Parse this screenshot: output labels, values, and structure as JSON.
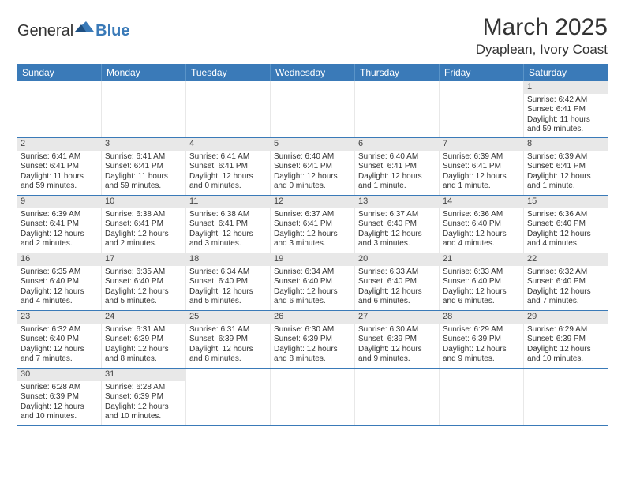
{
  "logo": {
    "text1": "General",
    "text2": "Blue"
  },
  "title": "March 2025",
  "location": "Dyaplean, Ivory Coast",
  "colors": {
    "header_bg": "#3a7ab8",
    "header_text": "#ffffff",
    "daynum_bg": "#e8e8e8",
    "text": "#333333",
    "row_border": "#3a7ab8"
  },
  "weekdays": [
    "Sunday",
    "Monday",
    "Tuesday",
    "Wednesday",
    "Thursday",
    "Friday",
    "Saturday"
  ],
  "weeks": [
    [
      null,
      null,
      null,
      null,
      null,
      null,
      {
        "n": "1",
        "sr": "6:42 AM",
        "ss": "6:41 PM",
        "dl": "11 hours and 59 minutes."
      }
    ],
    [
      {
        "n": "2",
        "sr": "6:41 AM",
        "ss": "6:41 PM",
        "dl": "11 hours and 59 minutes."
      },
      {
        "n": "3",
        "sr": "6:41 AM",
        "ss": "6:41 PM",
        "dl": "11 hours and 59 minutes."
      },
      {
        "n": "4",
        "sr": "6:41 AM",
        "ss": "6:41 PM",
        "dl": "12 hours and 0 minutes."
      },
      {
        "n": "5",
        "sr": "6:40 AM",
        "ss": "6:41 PM",
        "dl": "12 hours and 0 minutes."
      },
      {
        "n": "6",
        "sr": "6:40 AM",
        "ss": "6:41 PM",
        "dl": "12 hours and 1 minute."
      },
      {
        "n": "7",
        "sr": "6:39 AM",
        "ss": "6:41 PM",
        "dl": "12 hours and 1 minute."
      },
      {
        "n": "8",
        "sr": "6:39 AM",
        "ss": "6:41 PM",
        "dl": "12 hours and 1 minute."
      }
    ],
    [
      {
        "n": "9",
        "sr": "6:39 AM",
        "ss": "6:41 PM",
        "dl": "12 hours and 2 minutes."
      },
      {
        "n": "10",
        "sr": "6:38 AM",
        "ss": "6:41 PM",
        "dl": "12 hours and 2 minutes."
      },
      {
        "n": "11",
        "sr": "6:38 AM",
        "ss": "6:41 PM",
        "dl": "12 hours and 3 minutes."
      },
      {
        "n": "12",
        "sr": "6:37 AM",
        "ss": "6:41 PM",
        "dl": "12 hours and 3 minutes."
      },
      {
        "n": "13",
        "sr": "6:37 AM",
        "ss": "6:40 PM",
        "dl": "12 hours and 3 minutes."
      },
      {
        "n": "14",
        "sr": "6:36 AM",
        "ss": "6:40 PM",
        "dl": "12 hours and 4 minutes."
      },
      {
        "n": "15",
        "sr": "6:36 AM",
        "ss": "6:40 PM",
        "dl": "12 hours and 4 minutes."
      }
    ],
    [
      {
        "n": "16",
        "sr": "6:35 AM",
        "ss": "6:40 PM",
        "dl": "12 hours and 4 minutes."
      },
      {
        "n": "17",
        "sr": "6:35 AM",
        "ss": "6:40 PM",
        "dl": "12 hours and 5 minutes."
      },
      {
        "n": "18",
        "sr": "6:34 AM",
        "ss": "6:40 PM",
        "dl": "12 hours and 5 minutes."
      },
      {
        "n": "19",
        "sr": "6:34 AM",
        "ss": "6:40 PM",
        "dl": "12 hours and 6 minutes."
      },
      {
        "n": "20",
        "sr": "6:33 AM",
        "ss": "6:40 PM",
        "dl": "12 hours and 6 minutes."
      },
      {
        "n": "21",
        "sr": "6:33 AM",
        "ss": "6:40 PM",
        "dl": "12 hours and 6 minutes."
      },
      {
        "n": "22",
        "sr": "6:32 AM",
        "ss": "6:40 PM",
        "dl": "12 hours and 7 minutes."
      }
    ],
    [
      {
        "n": "23",
        "sr": "6:32 AM",
        "ss": "6:40 PM",
        "dl": "12 hours and 7 minutes."
      },
      {
        "n": "24",
        "sr": "6:31 AM",
        "ss": "6:39 PM",
        "dl": "12 hours and 8 minutes."
      },
      {
        "n": "25",
        "sr": "6:31 AM",
        "ss": "6:39 PM",
        "dl": "12 hours and 8 minutes."
      },
      {
        "n": "26",
        "sr": "6:30 AM",
        "ss": "6:39 PM",
        "dl": "12 hours and 8 minutes."
      },
      {
        "n": "27",
        "sr": "6:30 AM",
        "ss": "6:39 PM",
        "dl": "12 hours and 9 minutes."
      },
      {
        "n": "28",
        "sr": "6:29 AM",
        "ss": "6:39 PM",
        "dl": "12 hours and 9 minutes."
      },
      {
        "n": "29",
        "sr": "6:29 AM",
        "ss": "6:39 PM",
        "dl": "12 hours and 10 minutes."
      }
    ],
    [
      {
        "n": "30",
        "sr": "6:28 AM",
        "ss": "6:39 PM",
        "dl": "12 hours and 10 minutes."
      },
      {
        "n": "31",
        "sr": "6:28 AM",
        "ss": "6:39 PM",
        "dl": "12 hours and 10 minutes."
      },
      null,
      null,
      null,
      null,
      null
    ]
  ],
  "labels": {
    "sunrise": "Sunrise:",
    "sunset": "Sunset:",
    "daylight": "Daylight:"
  }
}
